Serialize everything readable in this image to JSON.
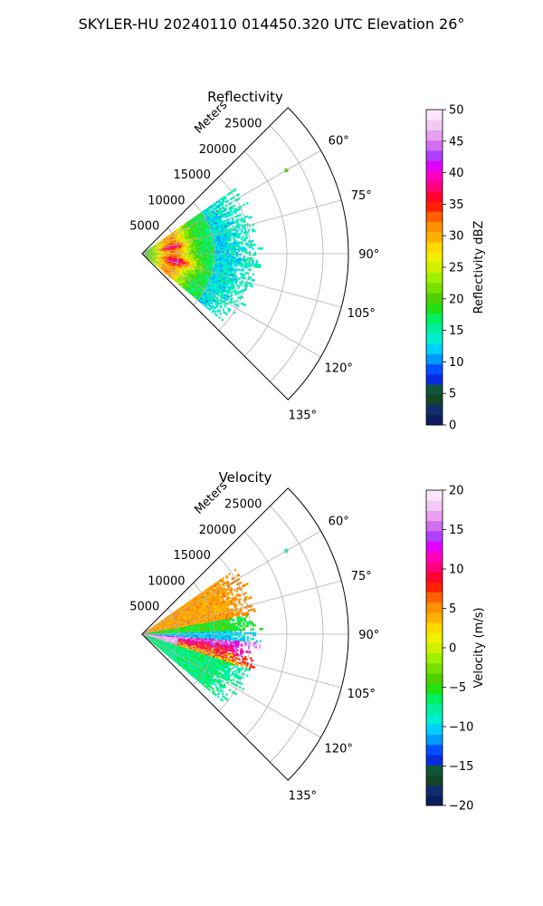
{
  "figure": {
    "suptitle": "SKYLER-HU  20240110  014450.320 UTC Elevation 26°"
  },
  "chart_data": [
    {
      "type": "heatmap",
      "subtype": "polar-sector (radar PPI)",
      "title": "Reflectivity",
      "radial_axis_label": "Meters",
      "radial_ticks": [
        5000,
        10000,
        15000,
        20000,
        25000
      ],
      "radial_tick_labels": [
        "5000",
        "10000",
        "15000",
        "20000",
        "25000"
      ],
      "rlim": [
        0,
        28500
      ],
      "angle_range_deg": [
        45,
        135
      ],
      "angle_ticks": [
        60,
        75,
        90,
        105,
        120,
        135
      ],
      "angle_tick_labels": [
        "60°",
        "75°",
        "90°",
        "105°",
        "120°",
        "135°"
      ],
      "grid": true,
      "colorbar": {
        "label": "Reflectivity dBZ",
        "range": [
          0,
          50
        ],
        "ticks": [
          0,
          5,
          10,
          15,
          20,
          25,
          30,
          35,
          40,
          45,
          50
        ],
        "tick_labels": [
          "0",
          "5",
          "10",
          "15",
          "20",
          "25",
          "30",
          "35",
          "40",
          "45",
          "50"
        ],
        "colors": [
          "#0b1d5c",
          "#102d6e",
          "#134526",
          "#10553a",
          "#0a2ae0",
          "#0050ff",
          "#009bff",
          "#00d0ff",
          "#00efd0",
          "#00f0a0",
          "#00f060",
          "#20e010",
          "#50d000",
          "#78e000",
          "#a0f000",
          "#d0f000",
          "#f0f000",
          "#ffd800",
          "#ffb000",
          "#ff9000",
          "#ff6000",
          "#ff2000",
          "#ff0030",
          "#ff0080",
          "#ff00c0",
          "#e000ff",
          "#b040ff",
          "#d070f0",
          "#e8a0f0",
          "#f4c8f4",
          "#fde6fd"
        ]
      },
      "data_summary": {
        "min_range_m": 0,
        "max_range_m": 20000,
        "sector_deg": [
          55,
          130
        ],
        "core_reflectivity_dbz": [
          30,
          40
        ],
        "core_range_m": [
          1500,
          8000
        ],
        "typical_dbz": [
          15,
          25
        ],
        "isolated_echo": {
          "angle_deg": 60,
          "range_m": 23000,
          "dbz": 20
        }
      }
    },
    {
      "type": "heatmap",
      "subtype": "polar-sector (radar PPI)",
      "title": "Velocity",
      "radial_axis_label": "Meters",
      "radial_ticks": [
        5000,
        10000,
        15000,
        20000,
        25000
      ],
      "radial_tick_labels": [
        "5000",
        "10000",
        "15000",
        "20000",
        "25000"
      ],
      "rlim": [
        0,
        28500
      ],
      "angle_range_deg": [
        45,
        135
      ],
      "angle_ticks": [
        60,
        75,
        90,
        105,
        120,
        135
      ],
      "angle_tick_labels": [
        "60°",
        "75°",
        "90°",
        "105°",
        "120°",
        "135°"
      ],
      "grid": true,
      "colorbar": {
        "label": "Velocity (m/s)",
        "range": [
          -20,
          20
        ],
        "ticks": [
          -20,
          -15,
          -10,
          -5,
          0,
          5,
          10,
          15,
          20
        ],
        "tick_labels": [
          "−20",
          "−15",
          "−10",
          "−5",
          "0",
          "5",
          "10",
          "15",
          "20"
        ],
        "colors": [
          "#0b1d5c",
          "#102d6e",
          "#134526",
          "#10553a",
          "#0a2ae0",
          "#0050ff",
          "#009bff",
          "#00d0ff",
          "#00efd0",
          "#00f0a0",
          "#00f060",
          "#20e010",
          "#50d000",
          "#78e000",
          "#a0f000",
          "#d0f000",
          "#f0f000",
          "#ffd800",
          "#ffb000",
          "#ff9000",
          "#ff6000",
          "#ff2000",
          "#ff0030",
          "#ff0080",
          "#ff00c0",
          "#e000ff",
          "#b040ff",
          "#d070f0",
          "#e8a0f0",
          "#f4c8f4",
          "#fde6fd"
        ]
      },
      "data_summary": {
        "min_range_m": 0,
        "max_range_m": 20000,
        "sector_deg": [
          55,
          130
        ],
        "inbound_band_deg": [
          88,
          94
        ],
        "inbound_ms": -12,
        "outbound_band_deg": [
          96,
          106
        ],
        "outbound_ms": 15,
        "northern_sector_ms": 3,
        "southern_sector_ms": -5
      }
    }
  ]
}
